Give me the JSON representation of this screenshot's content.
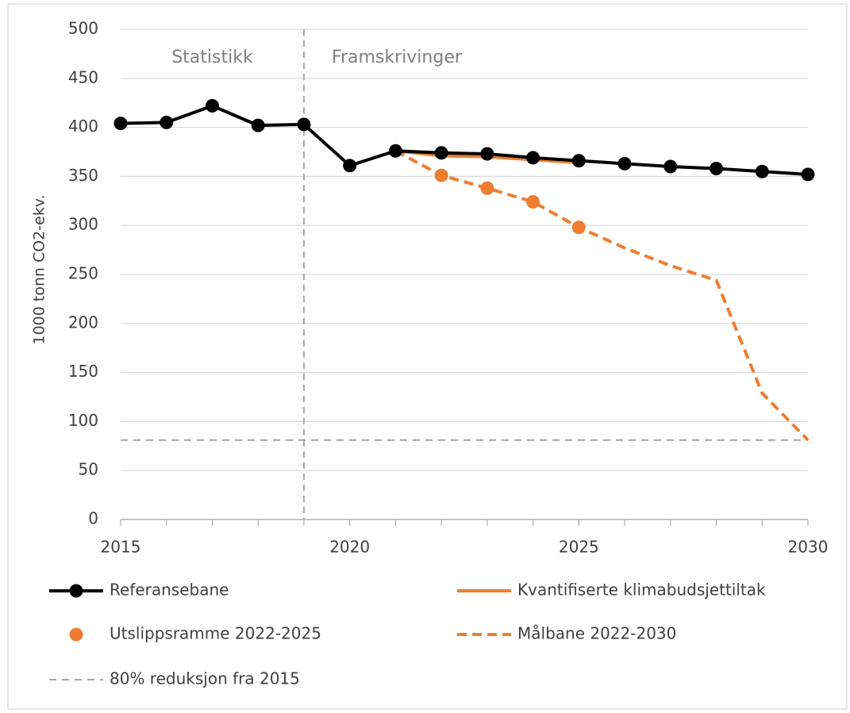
{
  "chart_data": {
    "type": "line",
    "ylabel": "1000 tonn CO2-ekv.",
    "annotations": [
      "Statistikk",
      "Framskrivinger"
    ],
    "vline": 2019,
    "xlim": [
      2015,
      2030
    ],
    "xticks": [
      2015,
      2020,
      2025,
      2030
    ],
    "ylim": [
      0,
      500
    ],
    "yticks": [
      0,
      50,
      100,
      150,
      200,
      250,
      300,
      350,
      400,
      450,
      500
    ],
    "grid": true,
    "legend": "bottom",
    "series": [
      {
        "name": "Referansebane",
        "color": "#000000",
        "line": "solid",
        "marker": true,
        "x": [
          2015,
          2016,
          2017,
          2018,
          2019,
          2020,
          2021,
          2022,
          2023,
          2024,
          2025,
          2026,
          2027,
          2028,
          2029,
          2030
        ],
        "values": [
          404,
          405,
          422,
          402,
          403,
          361,
          376,
          374,
          373,
          369,
          366,
          363,
          360,
          358,
          355,
          352
        ]
      },
      {
        "name": "Kvantifiserte klimabudsjettiltak",
        "color": "#ed7d31",
        "line": "solid",
        "marker": false,
        "x": [
          2021,
          2022,
          2023,
          2024,
          2025
        ],
        "values": [
          376,
          371,
          370,
          367,
          364
        ]
      },
      {
        "name": "Utslippsramme 2022-2025",
        "color": "#ed7d31",
        "line": "none",
        "marker": true,
        "x": [
          2022,
          2023,
          2024,
          2025
        ],
        "values": [
          351,
          338,
          324,
          298
        ]
      },
      {
        "name": "Målbane 2022-2030",
        "color": "#ed7d31",
        "line": "dashed",
        "marker": false,
        "x": [
          2021,
          2022,
          2023,
          2024,
          2025,
          2026,
          2027,
          2028,
          2029,
          2030
        ],
        "values": [
          376,
          351,
          338,
          324,
          298,
          277,
          259,
          244,
          129,
          81
        ]
      },
      {
        "name": "80% reduksjon fra 2015",
        "color": "#a6a6a6",
        "line": "dashed",
        "marker": false,
        "x": [
          2015,
          2030
        ],
        "values": [
          81,
          81
        ]
      }
    ]
  }
}
